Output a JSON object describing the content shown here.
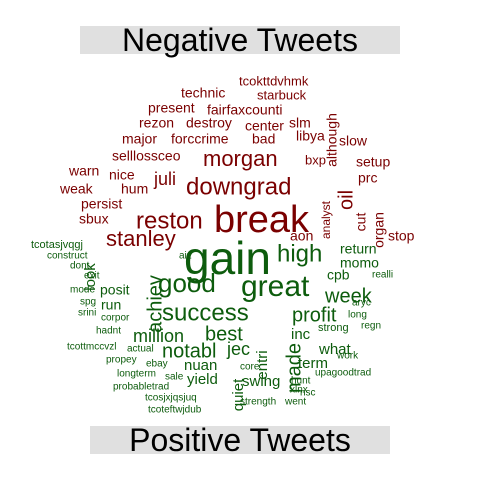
{
  "top_title": "Negative Tweets",
  "bottom_title": "Positive Tweets",
  "colors": {
    "negative": "#7a0000",
    "positive": "#0d5c0d",
    "title_bg": "#e0e0e0"
  },
  "negative_words": [
    "tcokttdvhmk",
    "technic",
    "starbuck",
    "present",
    "fairfaxcounti",
    "rezon",
    "destroy",
    "slm",
    "center",
    "major",
    "forccrime",
    "bad",
    "libya",
    "slow",
    "selllossceo",
    "morgan",
    "bxp",
    "although",
    "setup",
    "warn",
    "nice",
    "juli",
    "downgrad",
    "prc",
    "weak",
    "hum",
    "analyst",
    "oil",
    "persist",
    "cut",
    "organ",
    "sbux",
    "reston",
    "break",
    "stanley",
    "aon",
    "stop"
  ],
  "positive_words": [
    "gain",
    "tcotasjvqgj",
    "construct",
    "dont",
    "look",
    "achiev",
    "aiz",
    "high",
    "return",
    "momo",
    "exit",
    "good",
    "great",
    "realli",
    "mode",
    "posit",
    "spg",
    "run",
    "cpb",
    "week",
    "aryc",
    "srini",
    "success",
    "profit",
    "long",
    "corpor",
    "hadnt",
    "million",
    "best",
    "made",
    "strong",
    "regn",
    "entri",
    "inc",
    "tcottmccvzl",
    "actual",
    "notabl",
    "jec",
    "what",
    "propey",
    "ebay",
    "nuan",
    "term",
    "work",
    "longterm",
    "quiet",
    "yield",
    "core",
    "upagoodtrad",
    "probabletrad",
    "sale",
    "swing",
    "hunt",
    "nsc",
    "xlnx",
    "tcosjxjqsjuq",
    "tcoteftwjdub",
    "strength",
    "went"
  ]
}
